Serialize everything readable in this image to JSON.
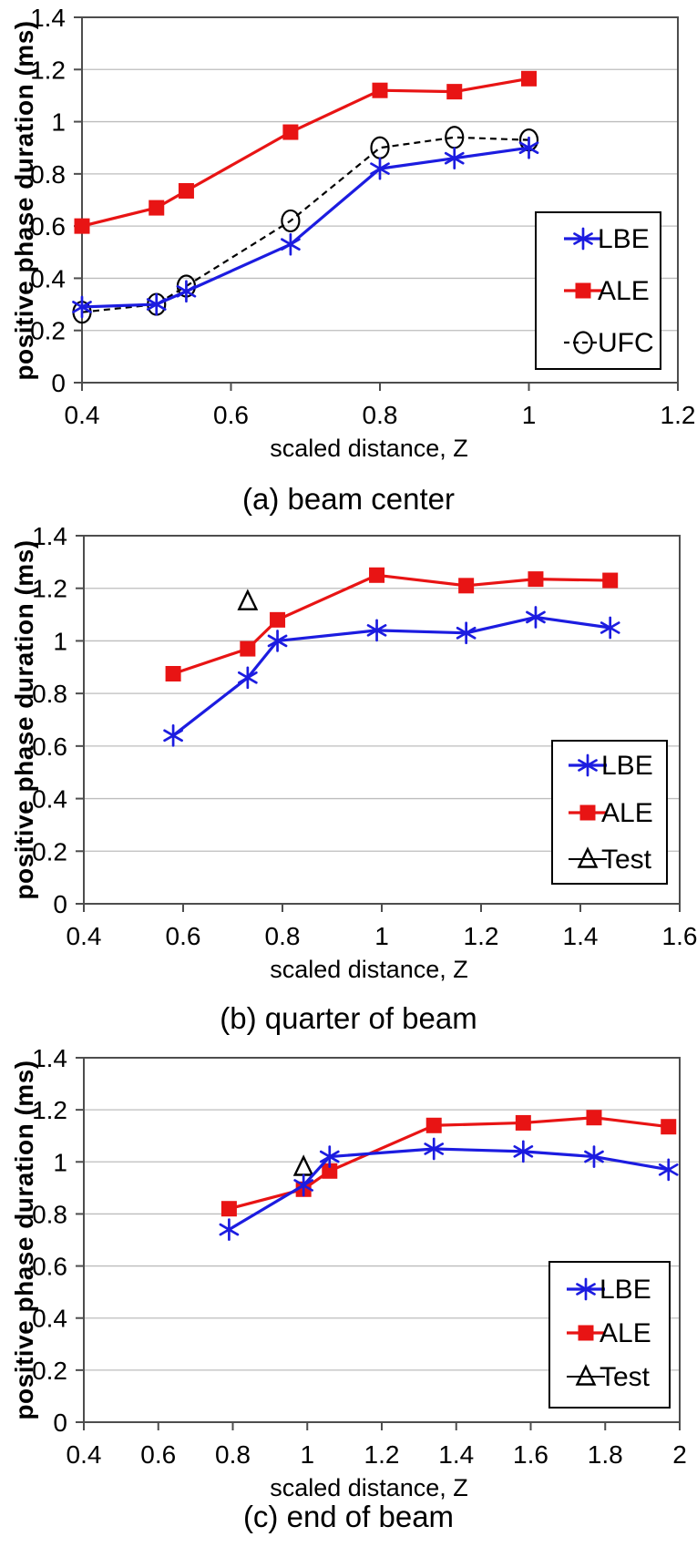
{
  "chart_data": [
    {
      "panel": "a",
      "type": "line",
      "caption": "(a) beam center",
      "xlabel": "scaled distance, Z",
      "ylabel": "positive phase duration (ms)",
      "xlim": [
        0.4,
        1.2
      ],
      "ylim": [
        0,
        1.4
      ],
      "x_tick_values": [
        0.4,
        0.6,
        0.8,
        1,
        1.2
      ],
      "x_tick_labels": [
        "0.4",
        "0.6",
        "0.8",
        "1",
        "1.2"
      ],
      "y_tick_values": [
        0,
        0.2,
        0.4,
        0.6,
        0.8,
        1,
        1.2,
        1.4
      ],
      "y_tick_labels": [
        "0",
        "0.2",
        "0.4",
        "0.6",
        "0.8",
        "1",
        "1.2",
        "1.4"
      ],
      "grid": "horizontal",
      "legend_position": "right-lower",
      "series": [
        {
          "name": "LBE",
          "color": "#1c1ce0",
          "marker": "asterisk",
          "line": "solid",
          "x": [
            0.4,
            0.5,
            0.54,
            0.68,
            0.8,
            0.9,
            1
          ],
          "y": [
            0.29,
            0.3,
            0.35,
            0.53,
            0.82,
            0.86,
            0.9
          ]
        },
        {
          "name": "ALE",
          "color": "#e81414",
          "marker": "square",
          "line": "solid",
          "x": [
            0.4,
            0.5,
            0.54,
            0.68,
            0.8,
            0.9,
            1
          ],
          "y": [
            0.6,
            0.67,
            0.735,
            0.96,
            1.12,
            1.115,
            1.165
          ]
        },
        {
          "name": "UFC",
          "color": "#000000",
          "marker": "circle",
          "line": "dashed",
          "x": [
            0.4,
            0.5,
            0.54,
            0.68,
            0.8,
            0.9,
            1
          ],
          "y": [
            0.27,
            0.3,
            0.37,
            0.62,
            0.9,
            0.94,
            0.93
          ]
        }
      ]
    },
    {
      "panel": "b",
      "type": "line",
      "caption": "(b) quarter of beam",
      "xlabel": "scaled distance, Z",
      "ylabel": "positive phase duration (ms)",
      "xlim": [
        0.4,
        1.6
      ],
      "ylim": [
        0,
        1.4
      ],
      "x_tick_values": [
        0.4,
        0.6,
        0.8,
        1,
        1.2,
        1.4,
        1.6
      ],
      "x_tick_labels": [
        "0.4",
        "0.6",
        "0.8",
        "1",
        "1.2",
        "1.4",
        "1.6"
      ],
      "y_tick_values": [
        0,
        0.2,
        0.4,
        0.6,
        0.8,
        1,
        1.2,
        1.4
      ],
      "y_tick_labels": [
        "0",
        "0.2",
        "0.4",
        "0.6",
        "0.8",
        "1",
        "1.2",
        "1.4"
      ],
      "grid": "horizontal",
      "legend_position": "right-lower",
      "series": [
        {
          "name": "LBE",
          "color": "#1c1ce0",
          "marker": "asterisk",
          "line": "solid",
          "x": [
            0.58,
            0.73,
            0.79,
            0.99,
            1.17,
            1.31,
            1.46
          ],
          "y": [
            0.64,
            0.86,
            1.0,
            1.04,
            1.03,
            1.09,
            1.05
          ]
        },
        {
          "name": "ALE",
          "color": "#e81414",
          "marker": "square",
          "line": "solid",
          "x": [
            0.58,
            0.73,
            0.79,
            0.99,
            1.17,
            1.31,
            1.46
          ],
          "y": [
            0.875,
            0.97,
            1.08,
            1.25,
            1.21,
            1.235,
            1.23
          ]
        },
        {
          "name": "Test",
          "color": "#000000",
          "marker": "triangle",
          "line": "none",
          "x": [
            0.73
          ],
          "y": [
            1.15
          ]
        }
      ]
    },
    {
      "panel": "c",
      "type": "line",
      "caption": "(c) end of beam",
      "xlabel": "scaled distance, Z",
      "ylabel": "positive phase duration (ms)",
      "xlim": [
        0.4,
        2
      ],
      "ylim": [
        0,
        1.4
      ],
      "x_tick_values": [
        0.4,
        0.6,
        0.8,
        1,
        1.2,
        1.4,
        1.6,
        1.8,
        2
      ],
      "x_tick_labels": [
        "0.4",
        "0.6",
        "0.8",
        "1",
        "1.2",
        "1.4",
        "1.6",
        "1.8",
        "2"
      ],
      "y_tick_values": [
        0,
        0.2,
        0.4,
        0.6,
        0.8,
        1,
        1.2,
        1.4
      ],
      "y_tick_labels": [
        "0",
        "0.2",
        "0.4",
        "0.6",
        "0.8",
        "1",
        "1.2",
        "1.4"
      ],
      "grid": "horizontal",
      "legend_position": "right-lower",
      "series": [
        {
          "name": "LBE",
          "color": "#1c1ce0",
          "marker": "asterisk",
          "line": "solid",
          "x": [
            0.79,
            0.99,
            1.06,
            1.34,
            1.58,
            1.77,
            1.97
          ],
          "y": [
            0.74,
            0.91,
            1.02,
            1.05,
            1.04,
            1.02,
            0.97
          ]
        },
        {
          "name": "ALE",
          "color": "#e81414",
          "marker": "square",
          "line": "solid",
          "x": [
            0.79,
            0.99,
            1.06,
            1.34,
            1.58,
            1.77,
            1.97
          ],
          "y": [
            0.82,
            0.895,
            0.965,
            1.14,
            1.15,
            1.17,
            1.135
          ]
        },
        {
          "name": "Test",
          "color": "#000000",
          "marker": "triangle",
          "line": "none",
          "x": [
            0.99
          ],
          "y": [
            0.98
          ]
        }
      ]
    }
  ],
  "style_colors": {
    "lbe_blue": "#1c1ce0",
    "ale_red": "#e81414",
    "grid_gray": "#bdbdbd",
    "frame_gray": "#4d4d4d"
  }
}
